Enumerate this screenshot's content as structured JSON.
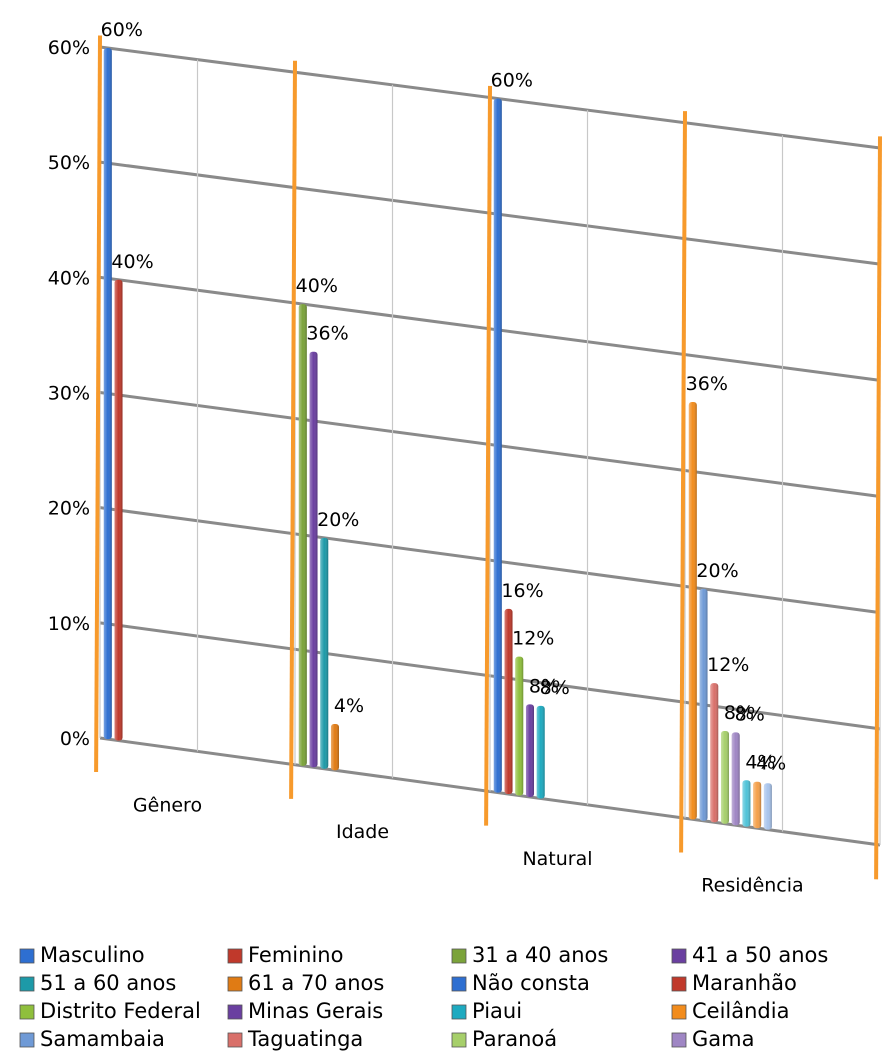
{
  "chart_data": {
    "type": "bar",
    "title": "",
    "xlabel": "",
    "ylabel": "",
    "ylim": [
      0,
      60
    ],
    "y_ticks": [
      "0%",
      "10%",
      "20%",
      "30%",
      "40%",
      "50%",
      "60%"
    ],
    "grid": true,
    "legend_position": "bottom",
    "categories": [
      "Gênero",
      "Idade",
      "Natural",
      "Residência"
    ],
    "series": [
      {
        "name": "Masculino",
        "color": "#2e6fd1",
        "category": "Gênero",
        "value": 60,
        "label": "60%"
      },
      {
        "name": "Feminino",
        "color": "#c0392b",
        "category": "Gênero",
        "value": 40,
        "label": "40%"
      },
      {
        "name": "31 a 40 anos",
        "color": "#7ba33a",
        "category": "Idade",
        "value": 40,
        "label": "40%"
      },
      {
        "name": "41 a 50 anos",
        "color": "#6a3fa0",
        "category": "Idade",
        "value": 36,
        "label": "36%"
      },
      {
        "name": "51 a 60 anos",
        "color": "#1d9aa8",
        "category": "Idade",
        "value": 20,
        "label": "20%"
      },
      {
        "name": "61 a 70 anos",
        "color": "#e07b14",
        "category": "Idade",
        "value": 4,
        "label": "4%"
      },
      {
        "name": "Não consta",
        "color": "#2e6fd1",
        "category": "Natural",
        "value": 60,
        "label": "60%"
      },
      {
        "name": "Maranhão",
        "color": "#c0392b",
        "category": "Natural",
        "value": 16,
        "label": "16%"
      },
      {
        "name": "Distrito Federal",
        "color": "#8fbf3c",
        "category": "Natural",
        "value": 12,
        "label": "12%"
      },
      {
        "name": "Minas Gerais",
        "color": "#6a3fa0",
        "category": "Natural",
        "value": 8,
        "label": "8%"
      },
      {
        "name": "Piaui",
        "color": "#1eaac0",
        "category": "Natural",
        "value": 8,
        "label": "8%"
      },
      {
        "name": "Ceilândia",
        "color": "#f28c1c",
        "category": "Residência",
        "value": 36,
        "label": "36%"
      },
      {
        "name": "Samambaia",
        "color": "#6f9ad6",
        "category": "Residência",
        "value": 20,
        "label": "20%"
      },
      {
        "name": "Taguatinga",
        "color": "#d9706a",
        "category": "Residência",
        "value": 12,
        "label": "12%"
      },
      {
        "name": "Paranoá",
        "color": "#a6cf6a",
        "category": "Residência",
        "value": 8,
        "label": "8%"
      },
      {
        "name": "Gama",
        "color": "#9f86c4",
        "category": "Residência",
        "value": 8,
        "label": "8%"
      },
      {
        "name": "",
        "color": "#4fc3d8",
        "category": "Residência",
        "value": 4,
        "label": "4%"
      },
      {
        "name": "",
        "color": "#f5a04a",
        "category": "Residência",
        "value": 4,
        "label": "4%"
      },
      {
        "name": "",
        "color": "#a8c4ec",
        "category": "Residência",
        "value": 4,
        "label": ""
      }
    ]
  },
  "colors": {
    "gridline": "#8a8a8a",
    "grid_light": "#c8c8c8",
    "separator": "#f79a2c"
  }
}
